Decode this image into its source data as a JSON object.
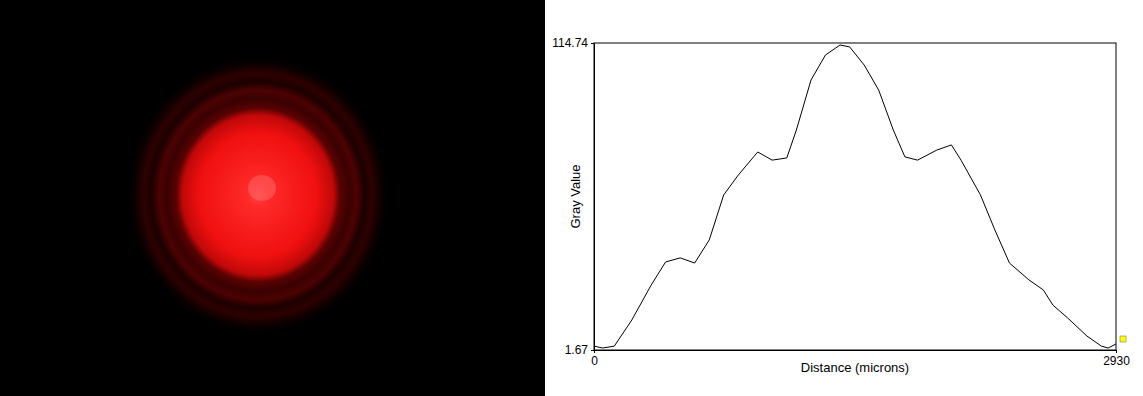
{
  "chart_data": {
    "type": "line",
    "y_label": "Gray Value",
    "x_label": "Distance (microns)",
    "color": "#000000",
    "xlim": [
      0,
      2930
    ],
    "xticks": [
      0,
      2930
    ],
    "ylim": [
      1.67,
      114.74
    ],
    "yticks": [
      1.67,
      114.74
    ],
    "grid": false,
    "x": [
      0,
      49,
      114,
      212,
      321,
      402,
      484,
      565,
      647,
      728,
      810,
      919,
      1000,
      1082,
      1136,
      1218,
      1299,
      1381,
      1435,
      1517,
      1598,
      1680,
      1745,
      1816,
      1924,
      2006,
      2060,
      2169,
      2250,
      2332,
      2441,
      2522,
      2576,
      2658,
      2767,
      2848,
      2886,
      2930
    ],
    "values": [
      3.1,
      2.4,
      3.1,
      12.7,
      25.6,
      34.1,
      35.6,
      33.7,
      42.2,
      58.8,
      66.1,
      74.6,
      71.6,
      72.4,
      82.7,
      101.1,
      110.3,
      114.0,
      113.3,
      106.6,
      97.4,
      82.7,
      72.8,
      71.6,
      75.3,
      77.2,
      71.6,
      58.8,
      45.9,
      33.7,
      27.5,
      23.8,
      18.2,
      13.5,
      6.8,
      3.1,
      2.4,
      3.9
    ]
  }
}
